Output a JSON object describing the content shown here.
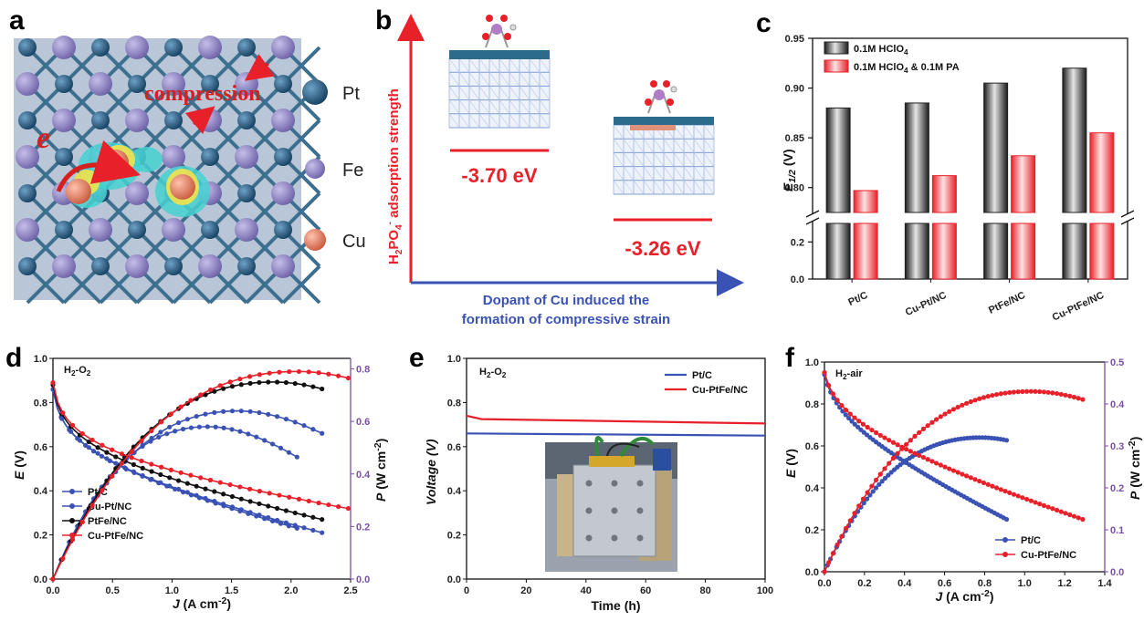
{
  "panels": {
    "a": {
      "label": "a",
      "e_label": "e",
      "compression_label": "compression",
      "legend": [
        {
          "name": "Pt",
          "color": "#1f4e79"
        },
        {
          "name": "Fe",
          "color": "#7f73b8"
        },
        {
          "name": "Cu",
          "color": "#e07a5f"
        }
      ]
    },
    "b": {
      "label": "b",
      "ylabel": "H2PO4⁻ adsorption strength",
      "ylabel_main": "H",
      "ylabel_sub2": "2",
      "ylabel_po": "PO",
      "ylabel_sub4": "4",
      "ylabel_sup": "-",
      "ylabel_rest": " adsorption strength",
      "xlabel_line1": "Dopant of Cu induced the",
      "xlabel_line2": "formation of compressive strain",
      "energy1": "-3.70 eV",
      "energy2": "-3.26 eV"
    },
    "c": {
      "label": "c"
    },
    "d": {
      "label": "d",
      "note": "H2-O2"
    },
    "e": {
      "label": "e",
      "note": "H2-O2"
    },
    "f": {
      "label": "f",
      "note": "H2-air"
    }
  },
  "chart_data": [
    {
      "panel": "c",
      "type": "bar",
      "categories": [
        "Pt/C",
        "Cu-Pt/NC",
        "PtFe/NC",
        "Cu-PtFe/NC"
      ],
      "series": [
        {
          "name": "0.1M HClO4",
          "color": "#333333",
          "values": [
            0.88,
            0.885,
            0.905,
            0.92
          ]
        },
        {
          "name": "0.1M HClO4 & 0.1M PA",
          "color": "#e8202a",
          "values": [
            0.797,
            0.812,
            0.832,
            0.855
          ]
        }
      ],
      "ylabel": "E1/2 (V)",
      "y_ticks_upper": [
        "0.80",
        "0.85",
        "0.90",
        "0.95"
      ],
      "y_ticks_lower": [
        "0.0",
        "0.2"
      ],
      "ylim_upper": [
        0.775,
        0.95
      ],
      "ylim_lower": [
        0,
        0.3
      ],
      "axis_break": true
    },
    {
      "panel": "d",
      "type": "line",
      "xlabel": "J (A cm-2)",
      "ylabel_left": "E (V)",
      "ylabel_right": "P (W cm-2)",
      "xlim": [
        0,
        2.5
      ],
      "ylim_left": [
        0,
        1.0
      ],
      "ylim_right": [
        0,
        0.84
      ],
      "x_ticks": [
        "0.0",
        "0.5",
        "1.0",
        "1.5",
        "2.0",
        "2.5"
      ],
      "y_ticks_left": [
        "0.0",
        "0.2",
        "0.4",
        "0.6",
        "0.8",
        "1.0"
      ],
      "y_ticks_right": [
        "0.0",
        "0.2",
        "0.4",
        "0.6",
        "0.8"
      ],
      "series": [
        {
          "name": "Pt/C",
          "color": "#3a52b3",
          "jmax": 2.05,
          "e0": 0.86,
          "e_end": 0.23,
          "pmax": 0.58,
          "jpk": 1.3
        },
        {
          "name": "Cu-Pt/NC",
          "color": "#3a52b3",
          "jmax": 2.26,
          "e0": 0.86,
          "e_end": 0.21,
          "pmax": 0.64,
          "jpk": 1.55
        },
        {
          "name": "PtFe/NC",
          "color": "#111111",
          "jmax": 2.26,
          "e0": 0.88,
          "e_end": 0.27,
          "pmax": 0.75,
          "jpk": 1.85
        },
        {
          "name": "Cu-PtFe/NC",
          "color": "#e8202a",
          "jmax": 2.48,
          "e0": 0.89,
          "e_end": 0.32,
          "pmax": 0.79,
          "jpk": 2.05
        }
      ]
    },
    {
      "panel": "e",
      "type": "line",
      "xlabel": "Time (h)",
      "ylabel": "Voltage (V)",
      "xlim": [
        0,
        100
      ],
      "ylim": [
        0,
        1.0
      ],
      "x_ticks": [
        "0",
        "20",
        "40",
        "60",
        "80",
        "100"
      ],
      "y_ticks": [
        "0.0",
        "0.2",
        "0.4",
        "0.6",
        "0.8",
        "1.0"
      ],
      "series": [
        {
          "name": "Pt/C",
          "color": "#3a52b3",
          "x": [
            0,
            100
          ],
          "y": [
            0.66,
            0.65
          ]
        },
        {
          "name": "Cu-PtFe/NC",
          "color": "#e8202a",
          "x": [
            0,
            5,
            100
          ],
          "y": [
            0.74,
            0.725,
            0.705
          ]
        }
      ]
    },
    {
      "panel": "f",
      "type": "line",
      "xlabel": "J (A cm-2)",
      "ylabel_left": "E (V)",
      "ylabel_right": "P (W cm-2)",
      "xlim": [
        0,
        1.4
      ],
      "ylim_left": [
        0,
        1.0
      ],
      "ylim_right": [
        0,
        0.5
      ],
      "x_ticks": [
        "0.0",
        "0.2",
        "0.4",
        "0.6",
        "0.8",
        "1.0",
        "1.2",
        "1.4"
      ],
      "y_ticks_left": [
        "0.0",
        "0.2",
        "0.4",
        "0.6",
        "0.8",
        "1.0"
      ],
      "y_ticks_right": [
        "0.0",
        "0.1",
        "0.2",
        "0.3",
        "0.4",
        "0.5"
      ],
      "series": [
        {
          "name": "Pt/C",
          "color": "#3a52b3",
          "jmax": 0.91,
          "e0": 0.94,
          "e_end": 0.25,
          "pmax": 0.32,
          "jpk": 0.78
        },
        {
          "name": "Cu-PtFe/NC",
          "color": "#e8202a",
          "jmax": 1.29,
          "e0": 0.95,
          "e_end": 0.25,
          "pmax": 0.43,
          "jpk": 1.03
        }
      ]
    }
  ]
}
